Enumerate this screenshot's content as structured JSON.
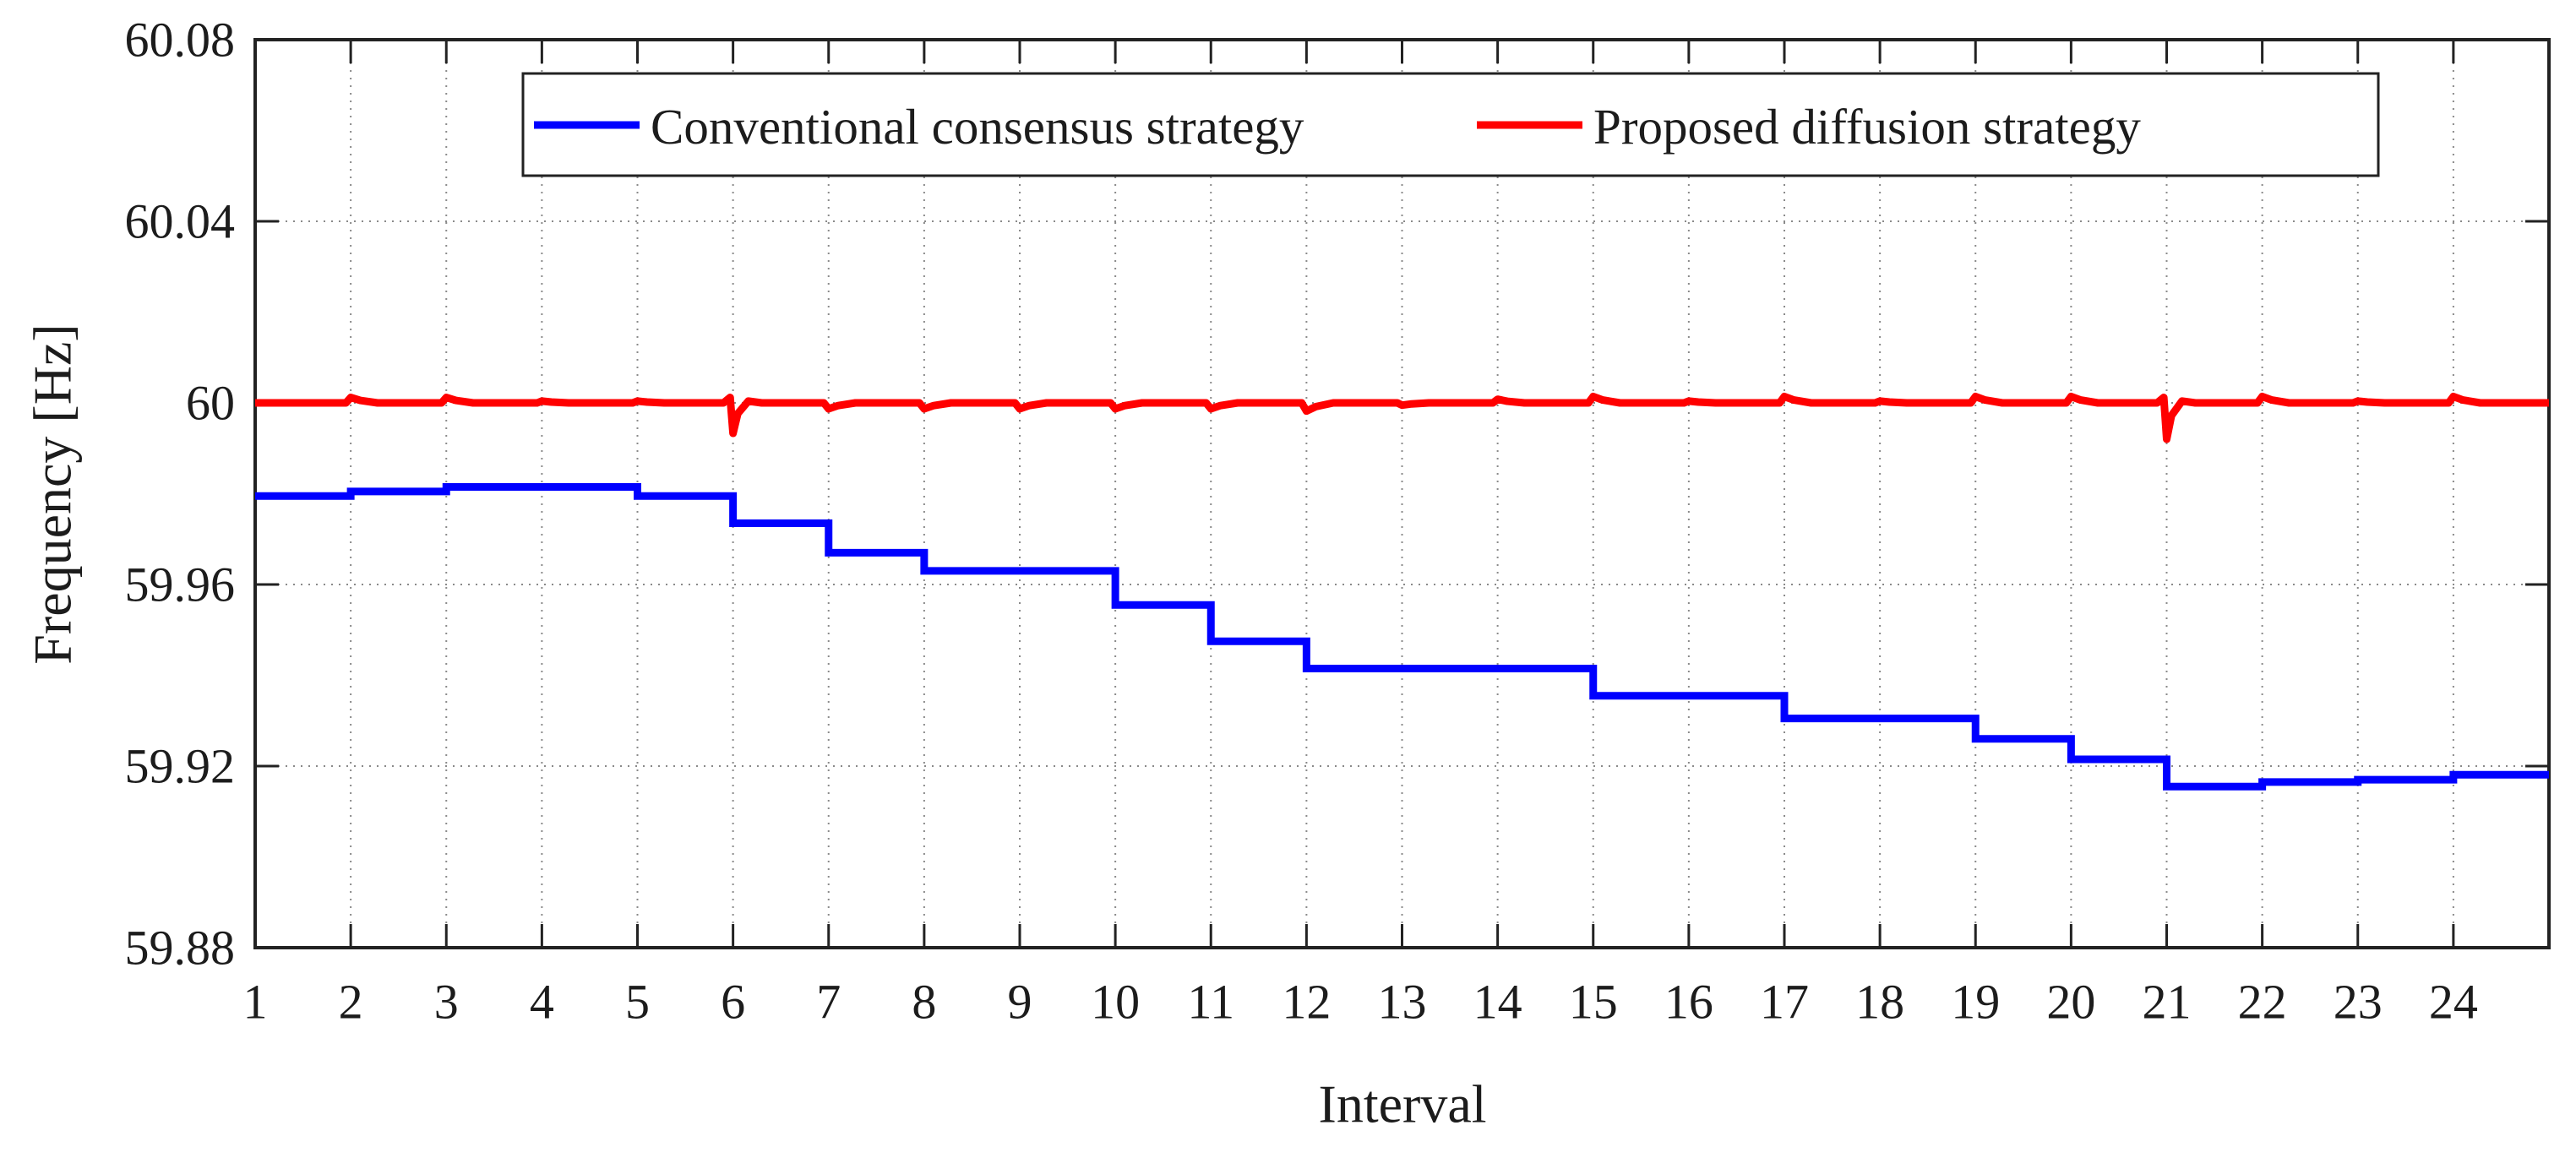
{
  "chart_data": {
    "type": "line",
    "title": "",
    "xlabel": "Interval",
    "ylabel": "Frequency [Hz]",
    "xlim": [
      1,
      25
    ],
    "ylim": [
      59.88,
      60.08
    ],
    "x_ticks": [
      1,
      2,
      3,
      4,
      5,
      6,
      7,
      8,
      9,
      10,
      11,
      12,
      13,
      14,
      15,
      16,
      17,
      18,
      19,
      20,
      21,
      22,
      23,
      24
    ],
    "y_ticks": [
      60.08,
      60.04,
      60,
      59.96,
      59.92,
      59.88
    ],
    "y_tick_labels": [
      "60.08",
      "60.04",
      "60",
      "59.96",
      "59.92",
      "59.88"
    ],
    "grid": "dotted",
    "legend_position": "top-center-inside",
    "series": [
      {
        "name": "Conventional consensus strategy",
        "color": "#0000ff",
        "style": "step",
        "comment_step_levels": "frequency held from interval i to i+1, i = 1..24",
        "step_levels_by_interval": [
          59.9795,
          59.9805,
          59.9815,
          59.9815,
          59.9795,
          59.9735,
          59.967,
          59.963,
          59.963,
          59.9555,
          59.9475,
          59.9415,
          59.9415,
          59.9415,
          59.9355,
          59.9355,
          59.9305,
          59.9305,
          59.926,
          59.9215,
          59.9155,
          59.9165,
          59.917,
          59.9181
        ]
      },
      {
        "name": "Proposed diffusion strategy",
        "color": "#ff0000",
        "style": "flat-with-transients",
        "baseline": 60.0,
        "transients": [
          {
            "x": 2,
            "delta": 0.0012
          },
          {
            "x": 3,
            "delta": 0.0012
          },
          {
            "x": 4,
            "delta": 0.0004
          },
          {
            "x": 5,
            "delta": 0.0004
          },
          {
            "x": 6,
            "delta": -0.0067
          },
          {
            "x": 7,
            "delta": -0.0013
          },
          {
            "x": 8,
            "delta": -0.0013
          },
          {
            "x": 9,
            "delta": -0.0013
          },
          {
            "x": 10,
            "delta": -0.0013
          },
          {
            "x": 11,
            "delta": -0.0013
          },
          {
            "x": 12,
            "delta": -0.0018
          },
          {
            "x": 13,
            "delta": -0.0005
          },
          {
            "x": 14,
            "delta": 0.0008
          },
          {
            "x": 15,
            "delta": 0.0014
          },
          {
            "x": 16,
            "delta": 0.0004
          },
          {
            "x": 17,
            "delta": 0.0014
          },
          {
            "x": 18,
            "delta": 0.0004
          },
          {
            "x": 19,
            "delta": 0.0014
          },
          {
            "x": 20,
            "delta": 0.0014
          },
          {
            "x": 21,
            "delta": -0.008
          },
          {
            "x": 22,
            "delta": 0.0014
          },
          {
            "x": 23,
            "delta": 0.0004
          },
          {
            "x": 24,
            "delta": 0.0014
          }
        ]
      }
    ]
  },
  "colors": {
    "series_blue": "#0000ff",
    "series_red": "#ff0000",
    "axis": "#222222",
    "grid": "#8a8a8a",
    "text": "#1c1c1c",
    "background": "#ffffff"
  }
}
